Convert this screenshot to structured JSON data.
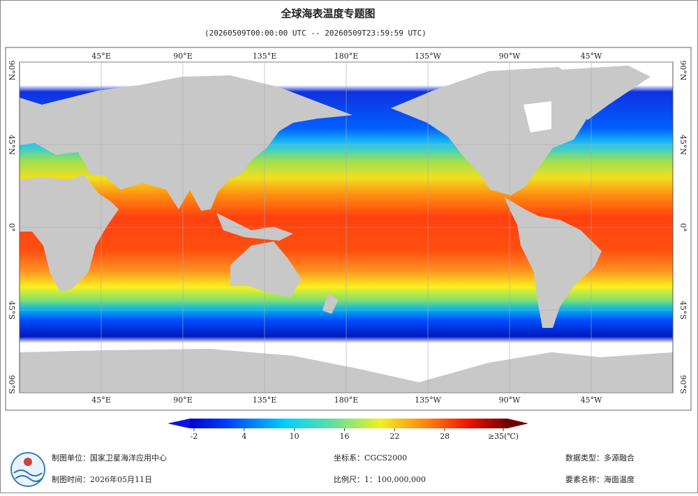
{
  "title": "全球海表温度专题图",
  "subtitle": "(20260509T00:00:00 UTC -- 20260509T23:59:59 UTC)",
  "map": {
    "lonlim": [
      0,
      360
    ],
    "latlim": [
      -90,
      90
    ],
    "lonticks": [
      {
        "value": 45,
        "label": "45°E"
      },
      {
        "value": 90,
        "label": "90°E"
      },
      {
        "value": 135,
        "label": "135°E"
      },
      {
        "value": 180,
        "label": "180°E"
      },
      {
        "value": 225,
        "label": "135°W"
      },
      {
        "value": 270,
        "label": "90°W"
      },
      {
        "value": 315,
        "label": "45°W"
      }
    ],
    "latticks": [
      {
        "value": 90,
        "label": "90°N"
      },
      {
        "value": 45,
        "label": "45°N"
      },
      {
        "value": 0,
        "label": "0°"
      },
      {
        "value": -45,
        "label": "45°S"
      },
      {
        "value": -90,
        "label": "90°S"
      }
    ],
    "grid": true
  },
  "colorbar": {
    "clim": [
      -2.5,
      35.5
    ],
    "ticks": [
      -2,
      4,
      10,
      16,
      22,
      28,
      {
        "value": 35,
        "label": "≥35(℃)"
      }
    ]
  },
  "footer": {
    "unit": "制图单位：国家卫星海洋应用中心",
    "crs": "坐标系：CGCS2000",
    "datatype": "数据类型：多源融合",
    "date": "制图时间：2026年05月11日",
    "scale": "比例尺：1：100,000,000",
    "element": "要素名称：海面温度"
  }
}
